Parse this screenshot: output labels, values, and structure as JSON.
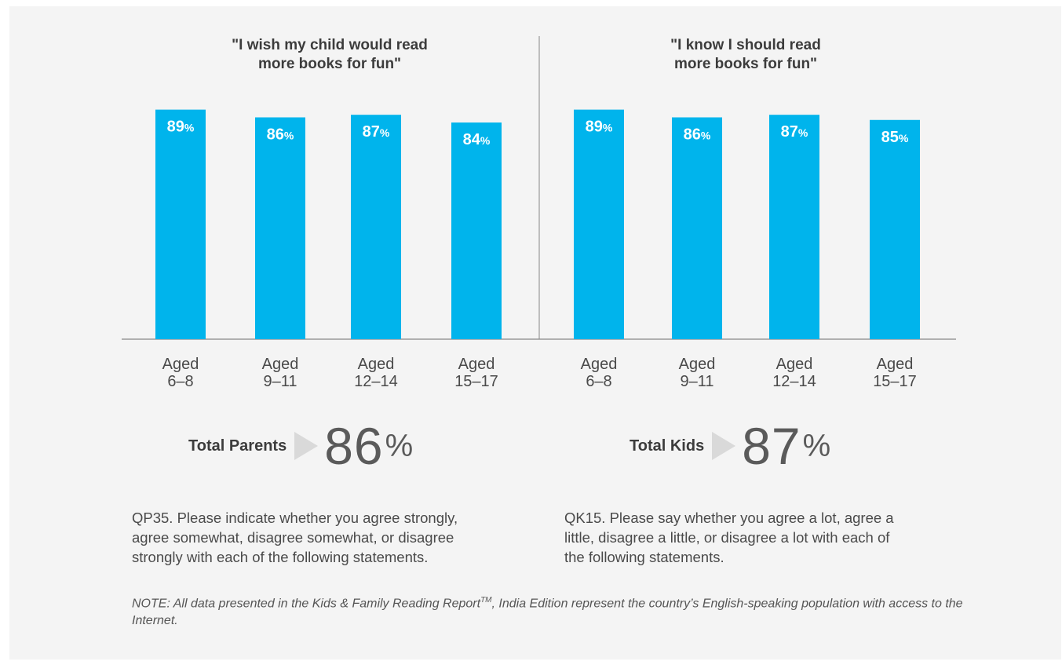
{
  "chart_data": [
    {
      "type": "bar",
      "title": "\"I wish my child would read more books for fun\"",
      "categories": [
        "Aged 6–8",
        "Aged 9–11",
        "Aged 12–14",
        "Aged 15–17"
      ],
      "values": [
        89,
        86,
        87,
        84
      ],
      "value_unit": "%",
      "ylim": [
        0,
        100
      ],
      "grid": false,
      "bar_color": "#00b4ec"
    },
    {
      "type": "bar",
      "title": "\"I know I should read more books for fun\"",
      "categories": [
        "Aged 6–8",
        "Aged 9–11",
        "Aged 12–14",
        "Aged 15–17"
      ],
      "values": [
        89,
        86,
        87,
        85
      ],
      "value_unit": "%",
      "ylim": [
        0,
        100
      ],
      "grid": false,
      "bar_color": "#00b4ec"
    }
  ],
  "titles": [
    [
      "\"I wish my child would read",
      "more books for fun\""
    ],
    [
      "\"I know I should read",
      "more books for fun\""
    ]
  ],
  "tick_lines": [
    [
      "Aged",
      "6–8"
    ],
    [
      "Aged",
      "9–11"
    ],
    [
      "Aged",
      "12–14"
    ],
    [
      "Aged",
      "15–17"
    ]
  ],
  "totals": [
    {
      "label": "Total Parents",
      "value": "86",
      "unit": "%"
    },
    {
      "label": "Total Kids",
      "value": "87",
      "unit": "%"
    }
  ],
  "questions": [
    [
      "QP35. Please indicate whether you agree strongly,",
      "agree somewhat, disagree somewhat, or disagree",
      "strongly with each of the following statements."
    ],
    [
      "QK15. Please say whether you agree a lot, agree a",
      "little, disagree a little, or disagree a lot with each of",
      "the following statements."
    ]
  ],
  "note": {
    "text_before": "NOTE: All data presented in the Kids & Family Reading Report",
    "superscript": "TM",
    "text_after": ", India Edition represent the country’s English-speaking population with access to the Internet."
  },
  "colors": {
    "bar": "#00b4ec",
    "label_text": "#ffffff",
    "axis": "#888888"
  }
}
